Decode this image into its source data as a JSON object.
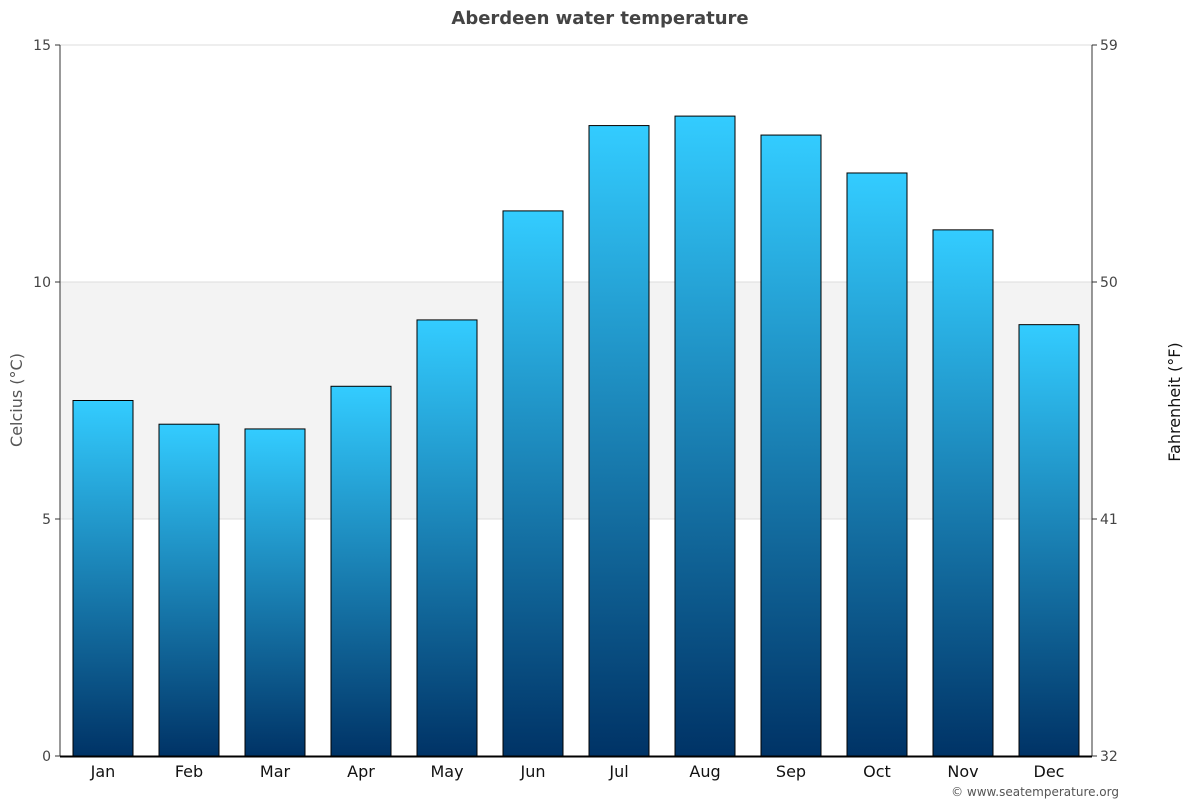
{
  "chart_data": {
    "type": "bar",
    "title": "Aberdeen water temperature",
    "ylabel": "Celcius (°C)",
    "ylabel_right": "Fahrenheit (°F)",
    "categories": [
      "Jan",
      "Feb",
      "Mar",
      "Apr",
      "May",
      "Jun",
      "Jul",
      "Aug",
      "Sep",
      "Oct",
      "Nov",
      "Dec"
    ],
    "values": [
      7.5,
      7.0,
      6.9,
      7.8,
      9.2,
      11.5,
      13.3,
      13.5,
      13.1,
      12.3,
      11.1,
      9.1
    ],
    "ylim": [
      0,
      15
    ],
    "yticks": [
      0,
      5,
      10,
      15
    ],
    "yticks_right": [
      32,
      41,
      50,
      59
    ],
    "shaded_band": [
      5,
      10
    ],
    "grid": true,
    "legend": "none",
    "colors": {
      "bar_top": "#33ccff",
      "bar_bottom": "#003366",
      "band": "#f3f3f3"
    }
  },
  "credit": "© www.seatemperature.org"
}
